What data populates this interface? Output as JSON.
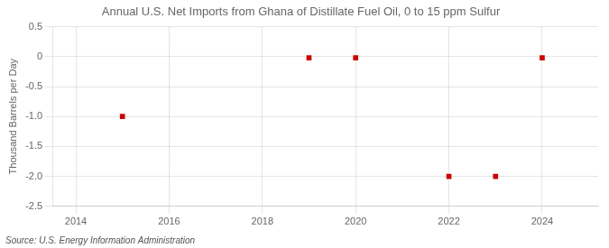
{
  "chart_data": {
    "type": "scatter",
    "title": "Annual U.S. Net Imports from Ghana of Distillate Fuel Oil, 0 to 15 ppm Sulfur",
    "ylabel": "Thousand Barrels per Day",
    "annotations": [
      "Source: U.S. Energy Information Administration"
    ],
    "x": [
      2015,
      2019,
      2020,
      2022,
      2023,
      2024
    ],
    "values": [
      -1.0,
      -0.02,
      -0.02,
      -2.0,
      -2.0,
      -0.02
    ],
    "color": "#cc0000",
    "marker": "square",
    "xlim": [
      2013.5,
      2025.2
    ],
    "ylim": [
      -2.5,
      0.5
    ],
    "xticks": [
      2014,
      2016,
      2018,
      2020,
      2022,
      2024
    ],
    "yticks": [
      0.5,
      0,
      -0.5,
      {
        "value": -1.0,
        "label": "-1.0"
      },
      -1.5,
      {
        "value": -2.0,
        "label": "-2.0"
      },
      -2.5
    ],
    "grid": true
  }
}
